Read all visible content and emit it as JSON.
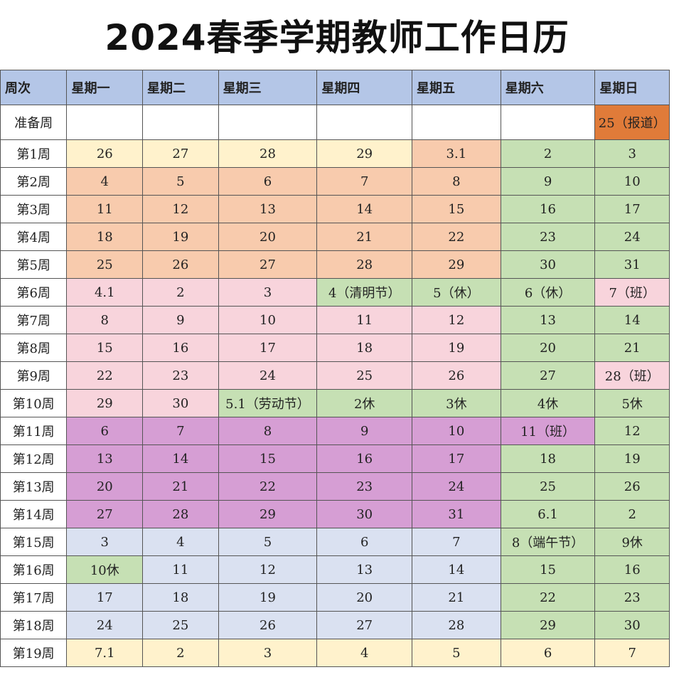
{
  "title": "2024春季学期教师工作日历",
  "headers": [
    "周次",
    "星期一",
    "星期二",
    "星期三",
    "星期四",
    "星期五",
    "星期六",
    "星期日"
  ],
  "colors": {
    "header": "#b4c6e7",
    "yellow": "#fff2cc",
    "tan": "#f8cbad",
    "pink": "#f8d4dc",
    "green": "#c6e0b4",
    "purple": "#d69ed4",
    "blue": "#dae1f1",
    "orange": "#e07b39"
  },
  "rows": [
    {
      "week": "准备周",
      "cells": [
        "",
        "",
        "",
        "",
        "",
        "",
        "25（报道）"
      ]
    },
    {
      "week": "第1周",
      "cells": [
        "26",
        "27",
        "28",
        "29",
        "3.1",
        "2",
        "3"
      ]
    },
    {
      "week": "第2周",
      "cells": [
        "4",
        "5",
        "6",
        "7",
        "8",
        "9",
        "10"
      ]
    },
    {
      "week": "第3周",
      "cells": [
        "11",
        "12",
        "13",
        "14",
        "15",
        "16",
        "17"
      ]
    },
    {
      "week": "第4周",
      "cells": [
        "18",
        "19",
        "20",
        "21",
        "22",
        "23",
        "24"
      ]
    },
    {
      "week": "第5周",
      "cells": [
        "25",
        "26",
        "27",
        "28",
        "29",
        "30",
        "31"
      ]
    },
    {
      "week": "第6周",
      "cells": [
        "4.1",
        "2",
        "3",
        "4（清明节）",
        "5（休）",
        "6（休）",
        "7（班）"
      ]
    },
    {
      "week": "第7周",
      "cells": [
        "8",
        "9",
        "10",
        "11",
        "12",
        "13",
        "14"
      ]
    },
    {
      "week": "第8周",
      "cells": [
        "15",
        "16",
        "17",
        "18",
        "19",
        "20",
        "21"
      ]
    },
    {
      "week": "第9周",
      "cells": [
        "22",
        "23",
        "24",
        "25",
        "26",
        "27",
        "28（班）"
      ]
    },
    {
      "week": "第10周",
      "cells": [
        "29",
        "30",
        "5.1（劳动节）",
        "2休",
        "3休",
        "4休",
        "5休"
      ]
    },
    {
      "week": "第11周",
      "cells": [
        "6",
        "7",
        "8",
        "9",
        "10",
        "11（班）",
        "12"
      ]
    },
    {
      "week": "第12周",
      "cells": [
        "13",
        "14",
        "15",
        "16",
        "17",
        "18",
        "19"
      ]
    },
    {
      "week": "第13周",
      "cells": [
        "20",
        "21",
        "22",
        "23",
        "24",
        "25",
        "26"
      ]
    },
    {
      "week": "第14周",
      "cells": [
        "27",
        "28",
        "29",
        "30",
        "31",
        "6.1",
        "2"
      ]
    },
    {
      "week": "第15周",
      "cells": [
        "3",
        "4",
        "5",
        "6",
        "7",
        "8（端午节）",
        "9休"
      ]
    },
    {
      "week": "第16周",
      "cells": [
        "10休",
        "11",
        "12",
        "13",
        "14",
        "15",
        "16"
      ]
    },
    {
      "week": "第17周",
      "cells": [
        "17",
        "18",
        "19",
        "20",
        "21",
        "22",
        "23"
      ]
    },
    {
      "week": "第18周",
      "cells": [
        "24",
        "25",
        "26",
        "27",
        "28",
        "29",
        "30"
      ]
    },
    {
      "week": "第19周",
      "cells": [
        "7.1",
        "2",
        "3",
        "4",
        "5",
        "6",
        "7"
      ]
    }
  ]
}
